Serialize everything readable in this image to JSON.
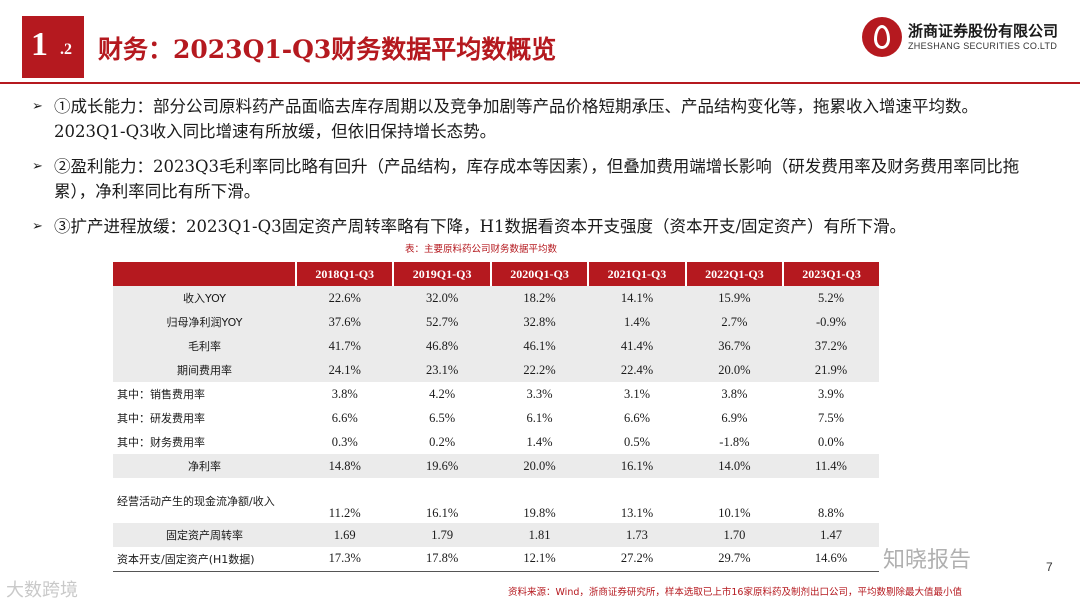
{
  "header": {
    "section_number": "1",
    "section_sub": ".2",
    "title": "财务：2023Q1-Q3财务数据平均数概览",
    "logo_cn": "浙商证券股份有限公司",
    "logo_en": "ZHESHANG SECURITIES CO.LTD",
    "accent": "#b5191f"
  },
  "bullets": [
    {
      "arrow": "➢",
      "text": "①成长能力：部分公司原料药产品面临去库存周期以及竞争加剧等产品价格短期承压、产品结构变化等，拖累收入增速平均数。2023Q1-Q3收入同比增速有所放缓，但依旧保持增长态势。"
    },
    {
      "arrow": "➢",
      "text": "②盈利能力：2023Q3毛利率同比略有回升（产品结构，库存成本等因素），但叠加费用端增长影响（研发费用率及财务费用率同比拖累），净利率同比有所下滑。"
    },
    {
      "arrow": "➢",
      "text": "③扩产进程放缓：2023Q1-Q3固定资产周转率略有下降，H1数据看资本开支强度（资本开支/固定资产）有所下滑。"
    }
  ],
  "table": {
    "caption": "表：主要原料药公司财务数据平均数",
    "headers": [
      "",
      "2018Q1-Q3",
      "2019Q1-Q3",
      "2020Q1-Q3",
      "2021Q1-Q3",
      "2022Q1-Q3",
      "2023Q1-Q3"
    ],
    "rows": [
      {
        "label": "收入YOY",
        "values": [
          "22.6%",
          "32.0%",
          "18.2%",
          "14.1%",
          "15.9%",
          "5.2%"
        ]
      },
      {
        "label": "归母净利润YOY",
        "values": [
          "37.6%",
          "52.7%",
          "32.8%",
          "1.4%",
          "2.7%",
          "-0.9%"
        ]
      },
      {
        "label": "毛利率",
        "values": [
          "41.7%",
          "46.8%",
          "46.1%",
          "41.4%",
          "36.7%",
          "37.2%"
        ]
      },
      {
        "label": "期间费用率",
        "values": [
          "24.1%",
          "23.1%",
          "22.2%",
          "22.4%",
          "20.0%",
          "21.9%"
        ]
      },
      {
        "label": "其中：销售费用率",
        "values": [
          "3.8%",
          "4.2%",
          "3.3%",
          "3.1%",
          "3.8%",
          "3.9%"
        ]
      },
      {
        "label": "其中：研发费用率",
        "values": [
          "6.6%",
          "6.5%",
          "6.1%",
          "6.6%",
          "6.9%",
          "7.5%"
        ]
      },
      {
        "label": "其中：财务费用率",
        "values": [
          "0.3%",
          "0.2%",
          "1.4%",
          "0.5%",
          "-1.8%",
          "0.0%"
        ]
      },
      {
        "label": "净利率",
        "values": [
          "14.8%",
          "19.6%",
          "20.0%",
          "16.1%",
          "14.0%",
          "11.4%"
        ]
      },
      {
        "label": "经营活动产生的现金流净额/收入",
        "values": [
          "11.2%",
          "16.1%",
          "19.8%",
          "13.1%",
          "10.1%",
          "8.8%"
        ]
      },
      {
        "label": "固定资产周转率",
        "values": [
          "1.69",
          "1.79",
          "1.81",
          "1.73",
          "1.70",
          "1.47"
        ]
      },
      {
        "label": "资本开支/固定资产(H1数据)",
        "values": [
          "17.3%",
          "17.8%",
          "12.1%",
          "27.2%",
          "29.7%",
          "14.6%"
        ]
      }
    ]
  },
  "footer": {
    "source": "资料来源：Wind，浙商证券研究所，样本选取已上市16家原料药及制剂出口公司，平均数剔除最大值最小值",
    "page": "7",
    "watermark_left": "大数跨境",
    "watermark_right": "知晓报告"
  }
}
